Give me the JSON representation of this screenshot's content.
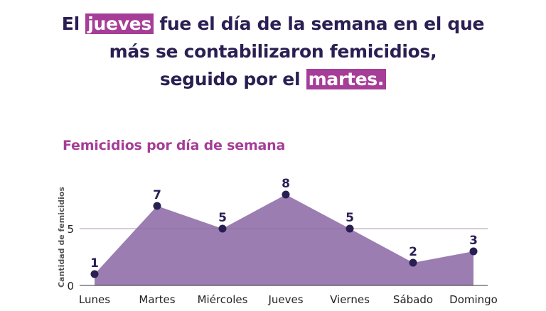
{
  "headline": {
    "line1_pre": "El",
    "line1_highlight": "jueves",
    "line1_post": " fue el día de la semana en el que",
    "line2": "más se contabilizaron femicidios,",
    "line3_pre": "seguido por el",
    "line3_highlight": "martes."
  },
  "colors": {
    "headline_text": "#2a1f52",
    "highlight": "#a63d97",
    "area_fill": "#9b7db1",
    "point": "#2a1f52"
  },
  "chart_data": {
    "type": "area",
    "title": "Femicidios por día de semana",
    "ylabel": "Cantidad de femicidios",
    "xlabel": "",
    "categories": [
      "Lunes",
      "Martes",
      "Miércoles",
      "Jueves",
      "Viernes",
      "Sábado",
      "Domingo"
    ],
    "values": [
      1,
      7,
      5,
      8,
      5,
      2,
      3
    ],
    "yticks": [
      0,
      5
    ],
    "ylim": [
      0,
      10
    ],
    "grid": true,
    "data_labels": true
  }
}
